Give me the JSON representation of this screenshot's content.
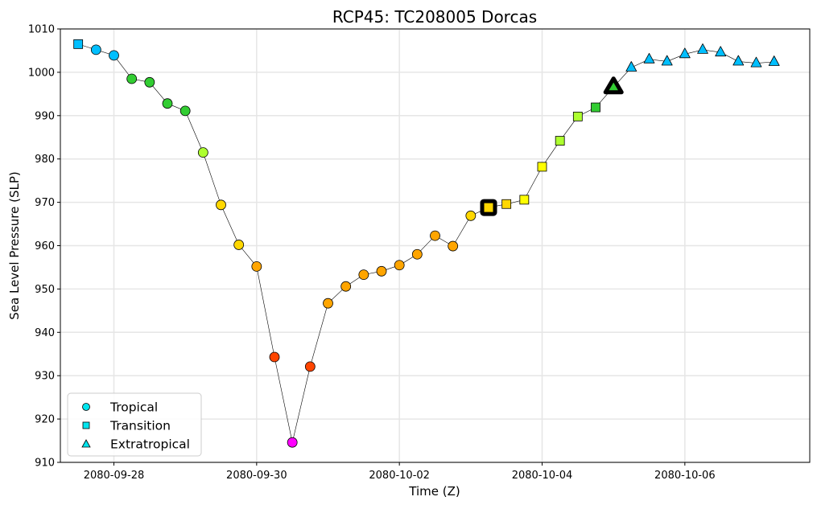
{
  "chart_data": {
    "type": "scatter",
    "title": "RCP45: TC208005 Dorcas",
    "xlabel": "Time (Z)",
    "ylabel": "Sea Level Pressure (SLP)",
    "ylim": [
      910,
      1010
    ],
    "yticks": [
      910,
      920,
      930,
      940,
      950,
      960,
      970,
      980,
      990,
      1000,
      1010
    ],
    "xlim": [
      "2080-09-27 06:00",
      "2080-10-07 18:00"
    ],
    "xticks": [
      "2080-09-28",
      "2080-09-30",
      "2080-10-02",
      "2080-10-04",
      "2080-10-06"
    ],
    "grid": true,
    "legend_position": "lower-left",
    "legend": [
      {
        "label": "Tropical",
        "marker": "circle",
        "color": "#00e5ee"
      },
      {
        "label": "Transition",
        "marker": "square",
        "color": "#00e5ee"
      },
      {
        "label": "Extratropical",
        "marker": "triangle",
        "color": "#00e5ee"
      }
    ],
    "points": [
      {
        "t": "2080-09-27 12:00",
        "slp": 1006.5,
        "type": "transition",
        "color": "#00bfff"
      },
      {
        "t": "2080-09-27 18:00",
        "slp": 1005.2,
        "type": "tropical",
        "color": "#00bfff"
      },
      {
        "t": "2080-09-28 00:00",
        "slp": 1003.9,
        "type": "tropical",
        "color": "#00bfff"
      },
      {
        "t": "2080-09-28 06:00",
        "slp": 998.5,
        "type": "tropical",
        "color": "#32cd32"
      },
      {
        "t": "2080-09-28 12:00",
        "slp": 997.7,
        "type": "tropical",
        "color": "#32cd32"
      },
      {
        "t": "2080-09-28 18:00",
        "slp": 992.8,
        "type": "tropical",
        "color": "#32cd32"
      },
      {
        "t": "2080-09-29 00:00",
        "slp": 991.1,
        "type": "tropical",
        "color": "#32cd32"
      },
      {
        "t": "2080-09-29 06:00",
        "slp": 981.5,
        "type": "tropical",
        "color": "#adff2f"
      },
      {
        "t": "2080-09-29 12:00",
        "slp": 969.4,
        "type": "tropical",
        "color": "#ffd700"
      },
      {
        "t": "2080-09-29 18:00",
        "slp": 960.2,
        "type": "tropical",
        "color": "#ffd700"
      },
      {
        "t": "2080-09-30 00:00",
        "slp": 955.2,
        "type": "tropical",
        "color": "#ffa500"
      },
      {
        "t": "2080-09-30 06:00",
        "slp": 934.3,
        "type": "tropical",
        "color": "#ff4500"
      },
      {
        "t": "2080-09-30 12:00",
        "slp": 914.6,
        "type": "tropical",
        "color": "#ff00ff"
      },
      {
        "t": "2080-09-30 18:00",
        "slp": 932.1,
        "type": "tropical",
        "color": "#ff4500"
      },
      {
        "t": "2080-10-01 00:00",
        "slp": 946.7,
        "type": "tropical",
        "color": "#ffa500"
      },
      {
        "t": "2080-10-01 06:00",
        "slp": 950.6,
        "type": "tropical",
        "color": "#ffa500"
      },
      {
        "t": "2080-10-01 12:00",
        "slp": 953.3,
        "type": "tropical",
        "color": "#ffa500"
      },
      {
        "t": "2080-10-01 18:00",
        "slp": 954.1,
        "type": "tropical",
        "color": "#ffa500"
      },
      {
        "t": "2080-10-02 00:00",
        "slp": 955.5,
        "type": "tropical",
        "color": "#ffa500"
      },
      {
        "t": "2080-10-02 06:00",
        "slp": 958.0,
        "type": "tropical",
        "color": "#ffa500"
      },
      {
        "t": "2080-10-02 12:00",
        "slp": 962.3,
        "type": "tropical",
        "color": "#ffa500"
      },
      {
        "t": "2080-10-02 18:00",
        "slp": 959.9,
        "type": "tropical",
        "color": "#ffa500"
      },
      {
        "t": "2080-10-03 00:00",
        "slp": 966.9,
        "type": "tropical",
        "color": "#ffd700"
      },
      {
        "t": "2080-10-03 06:00",
        "slp": 968.8,
        "type": "transition",
        "color": "#ffd700",
        "highlight": true
      },
      {
        "t": "2080-10-03 12:00",
        "slp": 969.6,
        "type": "transition",
        "color": "#ffd700"
      },
      {
        "t": "2080-10-03 18:00",
        "slp": 970.6,
        "type": "transition",
        "color": "#ffff00"
      },
      {
        "t": "2080-10-04 00:00",
        "slp": 978.2,
        "type": "transition",
        "color": "#ffff00"
      },
      {
        "t": "2080-10-04 06:00",
        "slp": 984.2,
        "type": "transition",
        "color": "#adff2f"
      },
      {
        "t": "2080-10-04 12:00",
        "slp": 989.8,
        "type": "transition",
        "color": "#adff2f"
      },
      {
        "t": "2080-10-04 18:00",
        "slp": 991.9,
        "type": "transition",
        "color": "#32cd32"
      },
      {
        "t": "2080-10-05 00:00",
        "slp": 996.6,
        "type": "extratropical",
        "color": "#32cd32",
        "highlight": true
      },
      {
        "t": "2080-10-05 06:00",
        "slp": 1001.1,
        "type": "extratropical",
        "color": "#00bfff"
      },
      {
        "t": "2080-10-05 12:00",
        "slp": 1003.0,
        "type": "extratropical",
        "color": "#00bfff"
      },
      {
        "t": "2080-10-05 18:00",
        "slp": 1002.5,
        "type": "extratropical",
        "color": "#00bfff"
      },
      {
        "t": "2080-10-06 00:00",
        "slp": 1004.2,
        "type": "extratropical",
        "color": "#00bfff"
      },
      {
        "t": "2080-10-06 06:00",
        "slp": 1005.2,
        "type": "extratropical",
        "color": "#00bfff"
      },
      {
        "t": "2080-10-06 12:00",
        "slp": 1004.6,
        "type": "extratropical",
        "color": "#00bfff"
      },
      {
        "t": "2080-10-06 18:00",
        "slp": 1002.5,
        "type": "extratropical",
        "color": "#00bfff"
      },
      {
        "t": "2080-10-07 00:00",
        "slp": 1002.1,
        "type": "extratropical",
        "color": "#00bfff"
      },
      {
        "t": "2080-10-07 06:00",
        "slp": 1002.4,
        "type": "extratropical",
        "color": "#00bfff"
      }
    ]
  }
}
